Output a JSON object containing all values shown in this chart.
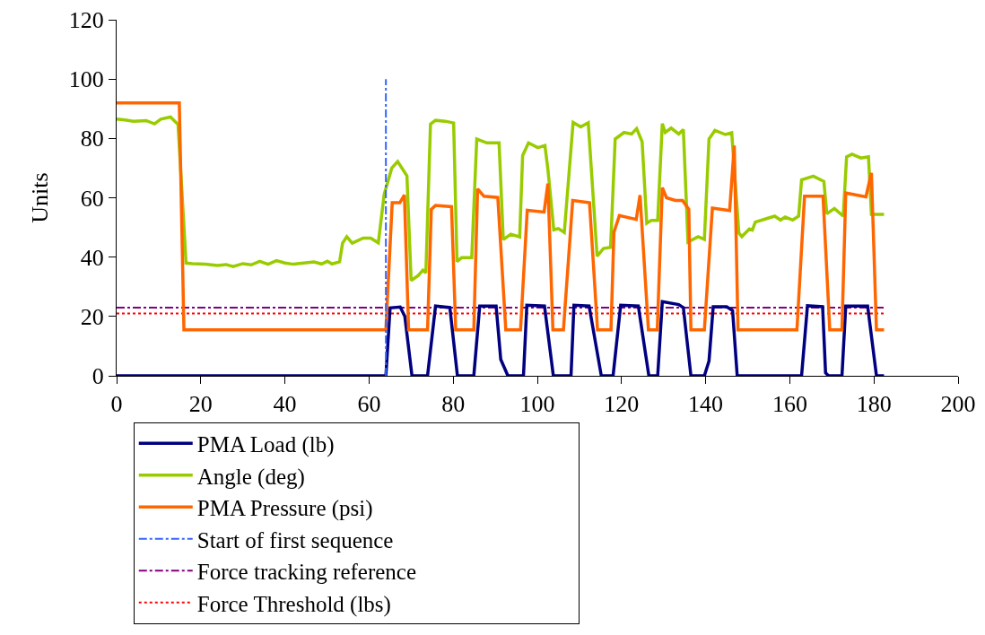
{
  "chart_data": {
    "type": "line",
    "ylabel": "Units",
    "xlim": [
      0,
      200
    ],
    "xticks": [
      0,
      20,
      40,
      60,
      80,
      100,
      120,
      140,
      160,
      180,
      200
    ],
    "ylim": [
      0,
      120
    ],
    "yticks": [
      0,
      20,
      40,
      60,
      80,
      100,
      120
    ],
    "grid": false,
    "legend": "bottom",
    "marker": "none",
    "series": [
      {
        "name": "PMA Load (lb)",
        "color": "#000080",
        "line_style": "solid",
        "x": [
          0,
          64,
          65,
          67.4,
          68.5,
          70.2,
          73.9,
          75.8,
          79.2,
          81,
          84.9,
          86.3,
          90.2,
          91.3,
          93,
          96.7,
          97.5,
          101.7,
          103.8,
          108,
          108.7,
          112.3,
          115.2,
          118,
          119.8,
          124,
          126.5,
          128.6,
          129.7,
          133.6,
          134.7,
          136.5,
          139.7,
          140.8,
          141.8,
          145,
          146.4,
          147.5,
          162.8,
          164.2,
          167.8,
          168.5,
          169.2,
          172.4,
          173.3,
          178.5,
          180.6,
          182.4
        ],
        "values": [
          0,
          0,
          22.9,
          23.2,
          20,
          0,
          0,
          23.5,
          23,
          0,
          0,
          23.5,
          23.5,
          5.5,
          0,
          0,
          23.8,
          23.5,
          0,
          0,
          23.8,
          23.5,
          0,
          0,
          23.8,
          23.5,
          0,
          0,
          25,
          24,
          23,
          0,
          0,
          5,
          23.3,
          23.3,
          22,
          0,
          0,
          23.6,
          23.3,
          1,
          0,
          0,
          23.5,
          23.5,
          0,
          0
        ]
      },
      {
        "name": "Angle (deg)",
        "color": "#99cc00",
        "line_style": "solid",
        "x": [
          0,
          2,
          4,
          7,
          9,
          10.5,
          12.8,
          14.6,
          16.5,
          18,
          21,
          24,
          26,
          27.7,
          30,
          32,
          34,
          36,
          38,
          40,
          42,
          44,
          46.9,
          48.7,
          50.1,
          51.2,
          53,
          53.7,
          54.7,
          56,
          58.6,
          60.4,
          62.2,
          63.6,
          65.4,
          66.8,
          69,
          70,
          71.7,
          72.8,
          73.5,
          74.6,
          75.8,
          78.1,
          80.1,
          80.9,
          82,
          84.4,
          85.6,
          88,
          90.9,
          91.9,
          93.7,
          95.8,
          96.5,
          97.9,
          100.1,
          101.8,
          102.5,
          103.9,
          105,
          106.4,
          108.5,
          110.3,
          112.1,
          114.2,
          115.7,
          117.4,
          118.5,
          120.6,
          122.4,
          123.6,
          124.9,
          126,
          127.1,
          128.6,
          129.7,
          130.4,
          131.8,
          133.6,
          134.7,
          135.8,
          138.2,
          139.7,
          140.8,
          142.2,
          144.7,
          146.2,
          147.9,
          148.6,
          150.4,
          151.1,
          151.8,
          154.3,
          156.4,
          157.8,
          158.9,
          160.7,
          162.1,
          162.8,
          165.6,
          168.1,
          168.8,
          170.6,
          172.7,
          173.5,
          174.8,
          176.9,
          178.7,
          179.4,
          182.4
        ],
        "values": [
          86.5,
          86.2,
          85.8,
          86,
          84.9,
          86.5,
          87.2,
          84.7,
          38,
          37.8,
          37.6,
          37.2,
          37.5,
          36.8,
          37.8,
          37.4,
          38.6,
          37.6,
          38.8,
          38,
          37.6,
          37.9,
          38.4,
          37.7,
          38.6,
          37.7,
          38.4,
          44.7,
          46.9,
          44.7,
          46.4,
          46.4,
          44.8,
          61.2,
          70,
          72.2,
          67.4,
          32.1,
          33.8,
          35.6,
          34.7,
          84.8,
          86.1,
          85.8,
          85.2,
          38.5,
          39.8,
          39.8,
          79.8,
          78.5,
          78.5,
          45.9,
          47.7,
          46.8,
          74.2,
          78.5,
          76.9,
          77.6,
          69.7,
          49.2,
          49.6,
          48.3,
          85.4,
          83.9,
          85.3,
          40.3,
          42.9,
          43.3,
          79.8,
          82,
          81.5,
          83.3,
          78.9,
          51.4,
          52.4,
          52.4,
          85,
          82,
          83.5,
          81.5,
          83,
          45.1,
          46.9,
          46,
          79.8,
          82.7,
          81.3,
          81.9,
          48.1,
          46.9,
          49.5,
          49.1,
          51.8,
          52.9,
          53.8,
          52.5,
          53.5,
          52.5,
          53.8,
          66,
          67.3,
          65.5,
          54.6,
          56.4,
          53.8,
          73.8,
          74.7,
          73.4,
          73.8,
          54.4,
          54.4
        ]
      },
      {
        "name": "PMA Pressure (psi)",
        "color": "#ff6600",
        "line_style": "solid",
        "x": [
          0,
          14.9,
          16,
          64,
          65.5,
          67.3,
          68.4,
          69.4,
          73.9,
          74.8,
          75.8,
          79.6,
          80.6,
          84.9,
          85.8,
          87.3,
          90.6,
          92.5,
          96,
          97.6,
          101.6,
          102.5,
          103.7,
          106.2,
          108.4,
          112.4,
          114.3,
          117.5,
          118.2,
          119.5,
          123.5,
          124.4,
          126.4,
          128.5,
          129.7,
          130.7,
          132.8,
          134.5,
          136,
          136.5,
          139.7,
          141.6,
          145.7,
          146.8,
          147.7,
          161.7,
          163.5,
          167.9,
          169.5,
          172.4,
          173.3,
          178.1,
          179.4,
          180.6,
          182.4
        ],
        "values": [
          92,
          92,
          15.5,
          15.5,
          58.3,
          58.3,
          60.9,
          15.5,
          15.5,
          56.1,
          57.4,
          57,
          15.5,
          15.5,
          63,
          60.5,
          60.1,
          15.5,
          15.5,
          55.8,
          55.2,
          64.8,
          15.5,
          15.5,
          59.1,
          58.3,
          15.5,
          15.5,
          48.4,
          54,
          52.7,
          60.9,
          15.5,
          15.5,
          63.4,
          60,
          59.1,
          59.1,
          56.1,
          15.5,
          15.5,
          56.5,
          55.7,
          77.6,
          15.5,
          15.5,
          60.5,
          60.5,
          15.5,
          15.5,
          61.6,
          60.3,
          68.4,
          15.5,
          15.5
        ]
      },
      {
        "name": "Start of first sequence",
        "color": "#3366ff",
        "line_style": "dashed",
        "x": [
          64,
          64
        ],
        "values": [
          0,
          100
        ]
      }
    ],
    "ref_lines": [
      {
        "axis": "y",
        "value": 23,
        "label": "Force tracking reference",
        "color": "#800080",
        "line_style": "dashed"
      },
      {
        "axis": "y",
        "value": 21,
        "label": "Force Threshold (lbs)",
        "color": "#ff0000",
        "line_style": "dotted"
      }
    ]
  }
}
